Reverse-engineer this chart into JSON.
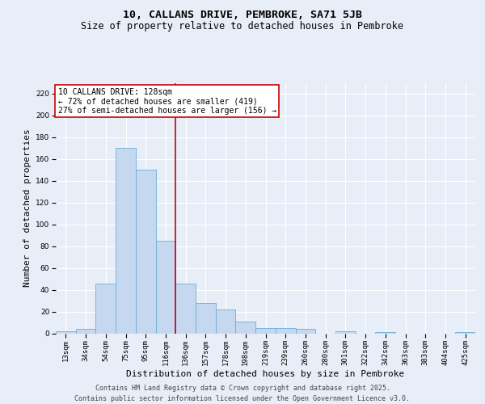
{
  "title_line1": "10, CALLANS DRIVE, PEMBROKE, SA71 5JB",
  "title_line2": "Size of property relative to detached houses in Pembroke",
  "xlabel": "Distribution of detached houses by size in Pembroke",
  "ylabel": "Number of detached properties",
  "categories": [
    "13sqm",
    "34sqm",
    "54sqm",
    "75sqm",
    "95sqm",
    "116sqm",
    "136sqm",
    "157sqm",
    "178sqm",
    "198sqm",
    "219sqm",
    "239sqm",
    "260sqm",
    "280sqm",
    "301sqm",
    "322sqm",
    "342sqm",
    "363sqm",
    "383sqm",
    "404sqm",
    "425sqm"
  ],
  "values": [
    2,
    4,
    46,
    170,
    150,
    85,
    46,
    28,
    22,
    11,
    5,
    5,
    4,
    0,
    2,
    0,
    1,
    0,
    0,
    0,
    1
  ],
  "bar_color": "#c5d8f0",
  "bar_edge_color": "#6aaed6",
  "property_line_color": "#cc0000",
  "annotation_text": "10 CALLANS DRIVE: 128sqm\n← 72% of detached houses are smaller (419)\n27% of semi-detached houses are larger (156) →",
  "annotation_box_color": "#ffffff",
  "annotation_box_edge": "#cc0000",
  "ylim": [
    0,
    230
  ],
  "yticks": [
    0,
    20,
    40,
    60,
    80,
    100,
    120,
    140,
    160,
    180,
    200,
    220
  ],
  "background_color": "#e8eef7",
  "plot_background": "#e8eef7",
  "footer_line1": "Contains HM Land Registry data © Crown copyright and database right 2025.",
  "footer_line2": "Contains public sector information licensed under the Open Government Licence v3.0.",
  "title_fontsize": 9.5,
  "subtitle_fontsize": 8.5,
  "tick_fontsize": 6.5,
  "xlabel_fontsize": 8,
  "ylabel_fontsize": 8,
  "annotation_fontsize": 7,
  "footer_fontsize": 6
}
